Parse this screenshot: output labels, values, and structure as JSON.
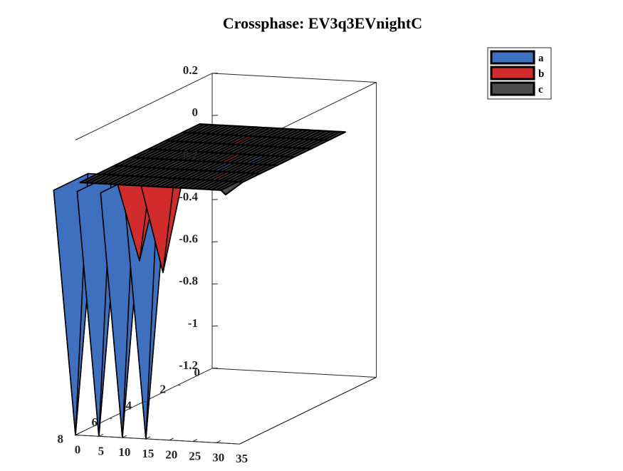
{
  "chart_data": {
    "type": "surface3d",
    "title": "Crossphase: EV3q3EVnightC",
    "xlabel": "",
    "ylabel": "",
    "zlabel": "",
    "xlim": [
      0,
      35
    ],
    "ylim": [
      0,
      8
    ],
    "zlim": [
      -1.2,
      0.2
    ],
    "x_ticks": [
      "0",
      "5",
      "10",
      "15",
      "20",
      "25",
      "30",
      "35"
    ],
    "y_ticks": [
      "0",
      "2",
      "4",
      "6",
      "8"
    ],
    "z_ticks": [
      "0.2",
      "0",
      "-0.2",
      "-0.4",
      "-0.6",
      "-0.8",
      "-1",
      "-1.2"
    ],
    "grid": false,
    "legend_position": "top-right",
    "grid_extent": {
      "x": [
        1,
        32
      ],
      "y": [
        1,
        8
      ]
    },
    "series": [
      {
        "name": "a",
        "color": "#3f6fbf",
        "baseline": 0,
        "points": [
          {
            "x": 0,
            "y": 8,
            "z": -1.2
          },
          {
            "x": 5,
            "y": 8,
            "z": -1.2
          },
          {
            "x": 10,
            "y": 8,
            "z": -1.2
          },
          {
            "x": 15,
            "y": 8,
            "z": -1.2
          },
          {
            "x": 22,
            "y": 5,
            "z": -0.05
          },
          {
            "x": 25,
            "y": 4,
            "z": -0.05
          }
        ]
      },
      {
        "name": "b",
        "color": "#d22b2b",
        "baseline": 0,
        "points": [
          {
            "x": 10,
            "y": 7,
            "z": -0.4
          },
          {
            "x": 15,
            "y": 7,
            "z": -0.45
          },
          {
            "x": 15,
            "y": 2,
            "z": -0.03
          },
          {
            "x": 20,
            "y": 4,
            "z": -0.03
          },
          {
            "x": 25,
            "y": 6,
            "z": -0.03
          }
        ]
      },
      {
        "name": "c",
        "color": "#4d4d4d",
        "baseline": 0,
        "points": [
          {
            "x": 32,
            "y": 8,
            "z": -0.02
          }
        ]
      }
    ]
  }
}
